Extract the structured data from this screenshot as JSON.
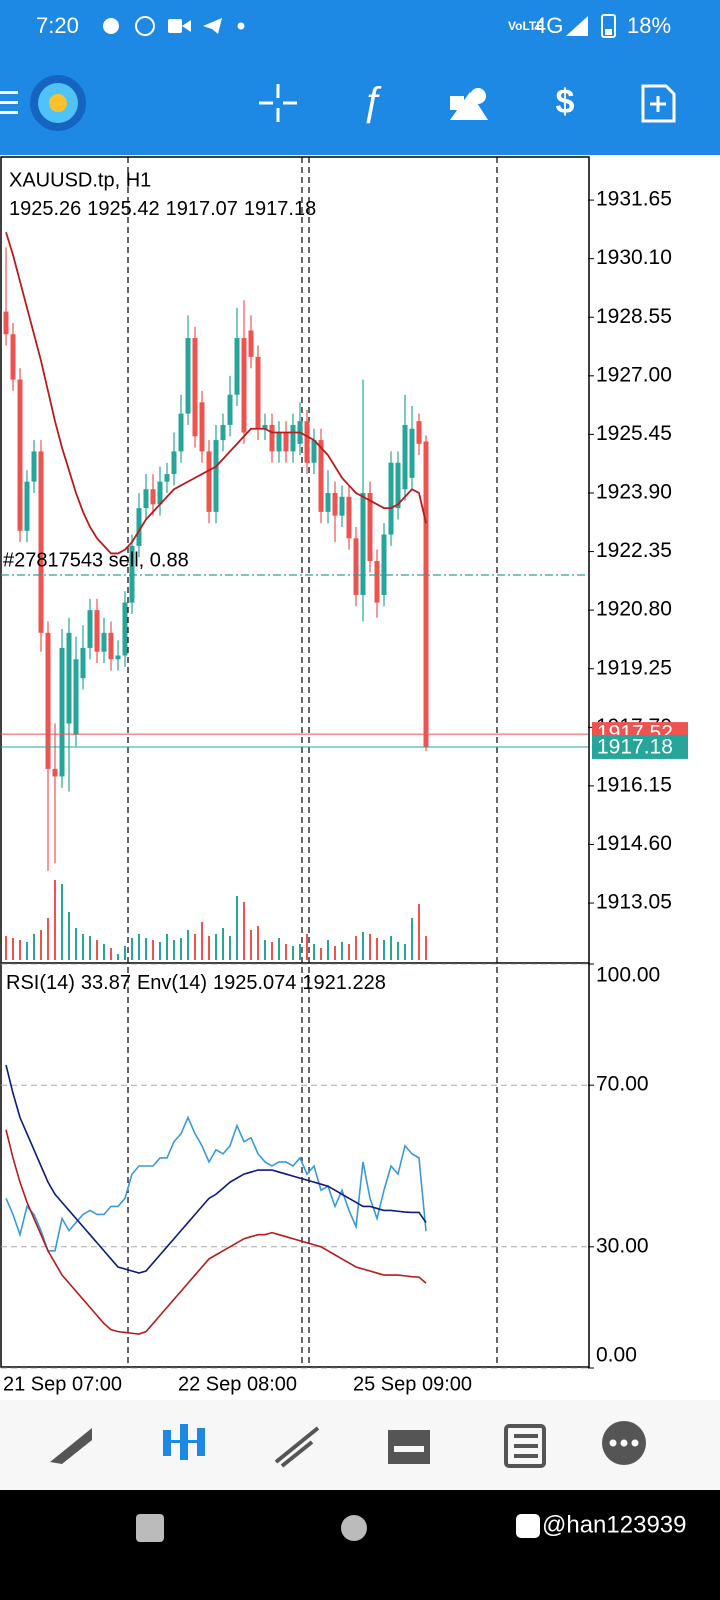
{
  "status_bar": {
    "time": "7:20",
    "network": "4G",
    "battery": "18%"
  },
  "watermark": "@han123939",
  "chart_data": [
    {
      "type": "candlestick",
      "title": "XAUUSD.tp, H1",
      "categories": [
        "21 Sep 07:00",
        null,
        null,
        null,
        null,
        null,
        null,
        null,
        null,
        null,
        null,
        null,
        null,
        null,
        null,
        null,
        null,
        null,
        null,
        null,
        null,
        null,
        null,
        null,
        null,
        "22 Sep 08:00",
        null,
        null,
        null,
        null,
        null,
        null,
        null,
        null,
        null,
        null,
        null,
        null,
        null,
        null,
        null,
        null,
        null,
        null,
        null,
        null,
        null,
        null,
        null,
        null,
        "25 Sep 09:00",
        null,
        null,
        null,
        null,
        null,
        null,
        null,
        null,
        null,
        null
      ],
      "open": [
        1928.7,
        1928.1,
        1926.9,
        1922.9,
        1924.2,
        1925.0,
        1920.2,
        1916.6,
        1916.4,
        1917.8,
        1917.5,
        1919.0,
        1919.8,
        1920.8,
        1919.7,
        1920.2,
        1919.5,
        1919.6,
        1921.0,
        1922.5,
        1923.5,
        1924.0,
        1923.6,
        1924.2,
        1924.4,
        1925.0,
        1926.0,
        1928.0,
        1926.3,
        1925.0,
        1923.4,
        1925.3,
        1925.7,
        1926.5,
        1928.0,
        1928.2,
        1927.5,
        1925.6,
        1925.7,
        1925.0,
        1925.5,
        1925.0,
        1925.2,
        1925.8,
        1924.7,
        1925.3,
        1923.4,
        1923.9,
        1923.3,
        1923.8,
        1922.7,
        1921.2,
        1923.9,
        1922.1,
        1921.2,
        1922.8,
        1923.5,
        1924.0,
        1924.3,
        1925.8,
        1925.26
      ],
      "high": [
        1930.4,
        1928.4,
        1927.2,
        1924.5,
        1925.3,
        1925.3,
        1920.5,
        1917.8,
        1920.3,
        1920.6,
        1920.1,
        1920.4,
        1921.1,
        1921.1,
        1920.6,
        1920.5,
        1920.0,
        1921.3,
        1922.8,
        1923.9,
        1924.4,
        1924.4,
        1924.6,
        1924.7,
        1925.5,
        1926.5,
        1928.6,
        1928.3,
        1926.6,
        1925.3,
        1925.7,
        1926.0,
        1927.0,
        1928.8,
        1929.0,
        1928.6,
        1927.8,
        1926.0,
        1926.0,
        1925.8,
        1925.8,
        1926.0,
        1926.3,
        1926.1,
        1925.6,
        1925.6,
        1924.5,
        1924.2,
        1924.1,
        1924.1,
        1923.0,
        1926.9,
        1924.2,
        1922.4,
        1923.1,
        1925.0,
        1925.0,
        1926.5,
        1926.2,
        1926.0,
        1925.42
      ],
      "low": [
        1927.8,
        1926.6,
        1922.6,
        1922.6,
        1923.9,
        1919.7,
        1913.9,
        1914.1,
        1916.1,
        1916.0,
        1917.2,
        1918.7,
        1919.5,
        1919.4,
        1919.4,
        1919.2,
        1919.2,
        1919.3,
        1920.7,
        1922.2,
        1923.2,
        1923.3,
        1923.3,
        1923.9,
        1924.1,
        1924.7,
        1925.7,
        1925.1,
        1924.7,
        1923.1,
        1923.1,
        1925.0,
        1925.4,
        1926.2,
        1925.2,
        1927.2,
        1925.3,
        1925.3,
        1924.7,
        1924.7,
        1924.7,
        1924.7,
        1924.9,
        1924.4,
        1924.4,
        1923.1,
        1923.1,
        1922.6,
        1923.0,
        1922.4,
        1920.9,
        1920.5,
        1921.8,
        1920.6,
        1920.9,
        1922.5,
        1923.2,
        1923.7,
        1924.0,
        1924.9,
        1917.07
      ],
      "close": [
        1928.1,
        1926.9,
        1922.9,
        1924.2,
        1925.0,
        1920.2,
        1916.6,
        1916.4,
        1919.8,
        1920.2,
        1919.5,
        1919.8,
        1920.8,
        1919.7,
        1920.2,
        1919.5,
        1919.6,
        1921.0,
        1922.5,
        1923.5,
        1924.0,
        1923.6,
        1924.2,
        1924.4,
        1925.0,
        1926.0,
        1928.0,
        1925.4,
        1925.0,
        1923.4,
        1925.3,
        1925.7,
        1926.5,
        1928.0,
        1925.5,
        1927.5,
        1925.6,
        1925.7,
        1925.0,
        1925.5,
        1925.0,
        1925.7,
        1925.8,
        1924.7,
        1925.3,
        1923.4,
        1923.9,
        1923.3,
        1923.8,
        1922.7,
        1921.2,
        1923.9,
        1922.1,
        1921.0,
        1922.8,
        1924.7,
        1924.7,
        1925.7,
        1925.6,
        1925.2,
        1917.18
      ],
      "ma": [
        1930.8,
        1930.2,
        1929.5,
        1928.8,
        1928.1,
        1927.4,
        1926.6,
        1925.8,
        1925.1,
        1924.5,
        1923.9,
        1923.4,
        1923.0,
        1922.7,
        1922.5,
        1922.3,
        1922.3,
        1922.4,
        1922.6,
        1922.9,
        1923.2,
        1923.4,
        1923.6,
        1923.8,
        1924.0,
        1924.1,
        1924.2,
        1924.3,
        1924.4,
        1924.5,
        1924.6,
        1924.8,
        1925.0,
        1925.2,
        1925.4,
        1925.6,
        1925.6,
        1925.6,
        1925.5,
        1925.5,
        1925.5,
        1925.5,
        1925.5,
        1925.4,
        1925.3,
        1925.1,
        1924.9,
        1924.6,
        1924.3,
        1924.1,
        1923.9,
        1923.8,
        1923.7,
        1923.6,
        1923.5,
        1923.5,
        1923.6,
        1923.8,
        1924.0,
        1923.9,
        1923.1
      ],
      "volumes": [
        2400,
        2200,
        2000,
        1800,
        2600,
        3000,
        4200,
        8000,
        7600,
        4800,
        3200,
        2600,
        2400,
        2000,
        1600,
        1200,
        600,
        1400,
        2200,
        2600,
        2200,
        2000,
        1800,
        2600,
        2000,
        2200,
        3000,
        2600,
        3800,
        2400,
        2600,
        3200,
        2400,
        6400,
        5800,
        3000,
        3400,
        2000,
        1800,
        2200,
        1600,
        1400,
        1600,
        2600,
        1600,
        1200,
        2000,
        1400,
        1800,
        1600,
        2400,
        2800,
        2600,
        2200,
        2000,
        2400,
        1800,
        1600,
        4200,
        5600,
        2400
      ],
      "up_color": "#26a69a",
      "down_color": "#ef5350",
      "ma_color": "#b71c1c",
      "ask": 1917.52,
      "ask_color": "#ef5350",
      "bid_color": "#26a69a",
      "order": {
        "label": "#27817543 sell, 0.88",
        "price": 1921.73,
        "color": "#26a69a"
      },
      "ylim": [
        1911.49,
        1932.79
      ],
      "yticks": [
        1931.65,
        {
          "value": 1930.1,
          "label": "1930.10"
        },
        1928.55,
        {
          "value": 1927.0,
          "label": "1927.00"
        },
        1925.45,
        {
          "value": 1923.9,
          "label": "1923.90"
        },
        1922.35,
        {
          "value": 1920.8,
          "label": "1920.80"
        },
        1919.25,
        {
          "value": 1917.7,
          "label": "1917.70"
        },
        1916.15,
        {
          "value": 1914.6,
          "label": "1914.60"
        },
        1913.05
      ]
    },
    {
      "type": "line",
      "rsi_label": "RSI(14)",
      "env_label": "Env(14)",
      "env_values": [
        1925.074,
        1921.228
      ],
      "series": [
        {
          "color": "#3a9ad9",
          "values": [
            42,
            38,
            33,
            40,
            38,
            34,
            29,
            29,
            37,
            34,
            36,
            38,
            39,
            38,
            38,
            40,
            40,
            42,
            48,
            50,
            50,
            50,
            52,
            52,
            56,
            58,
            62,
            58,
            55,
            51,
            54,
            53,
            55,
            60,
            56,
            57,
            53,
            51,
            50,
            51,
            51,
            50,
            52,
            48,
            50,
            44,
            45,
            40,
            44,
            39,
            35,
            51,
            42,
            37,
            44,
            50,
            48,
            55,
            53,
            52,
            33.87
          ]
        },
        {
          "color": "#0d1a80",
          "values": [
            75,
            68,
            62,
            58,
            54,
            50,
            46,
            43,
            41,
            39,
            37,
            35,
            33,
            31,
            29,
            27,
            25,
            24.5,
            24,
            23.5,
            24,
            26,
            28,
            30,
            32,
            34,
            36,
            38,
            40,
            42,
            43,
            44.5,
            46,
            47,
            48,
            48.5,
            49,
            49,
            49,
            48.5,
            48,
            47.5,
            47,
            46.5,
            46,
            45.5,
            45,
            44,
            43,
            42,
            41,
            40,
            40,
            39.5,
            39,
            39,
            38.8,
            38.6,
            38.5,
            38.5,
            36
          ]
        },
        {
          "color": "#b71c1c",
          "values": [
            59,
            52,
            46,
            41,
            37,
            33,
            29,
            26,
            23,
            21,
            19,
            17,
            15,
            13,
            11,
            9.5,
            9,
            8.8,
            8.6,
            8.4,
            9,
            11,
            13,
            15,
            17,
            19,
            21,
            23,
            25,
            27,
            28,
            29,
            30,
            31,
            32,
            32.5,
            33,
            33,
            33.5,
            33,
            32.5,
            32,
            31.5,
            31,
            30.5,
            30,
            29,
            28,
            27,
            26,
            25,
            24.5,
            24,
            23.5,
            23,
            23,
            23,
            22.8,
            22.6,
            22.5,
            21
          ]
        }
      ],
      "ylim": [
        0,
        100
      ],
      "yticks": [
        {
          "value": 100,
          "label": "100.00"
        },
        {
          "value": 70,
          "label": "70.00"
        },
        {
          "value": 30,
          "label": "30.00"
        },
        {
          "value": 0,
          "label": "0.00"
        }
      ]
    }
  ]
}
